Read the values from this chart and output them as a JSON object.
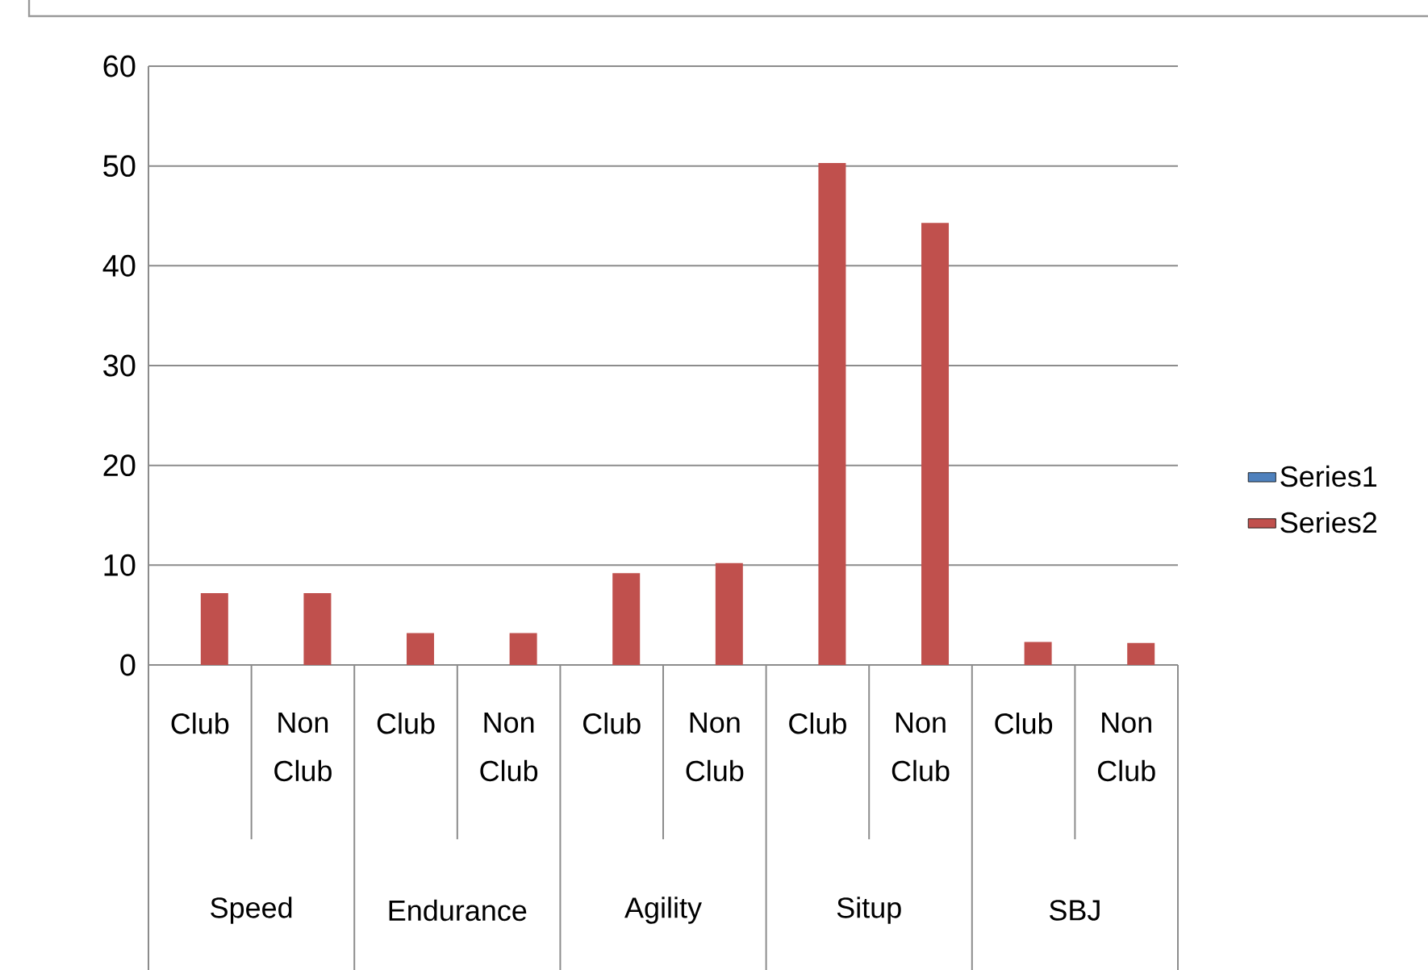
{
  "chart_data": {
    "type": "bar",
    "categories": [
      "Club",
      "Non Club",
      "Club",
      "Non Club",
      "Club",
      "Non Club",
      "Club",
      "Non Club",
      "Club",
      "Non Club"
    ],
    "series": [
      {
        "name": "Series1",
        "color": "#4f81bd",
        "values": [
          null,
          null,
          null,
          null,
          null,
          null,
          null,
          null,
          null,
          null
        ]
      },
      {
        "name": "Series2",
        "color": "#c0504d",
        "values": [
          7.2,
          7.2,
          3.2,
          3.2,
          9.2,
          10.2,
          50.3,
          44.3,
          2.3,
          2.2
        ]
      }
    ],
    "annotations": [
      "Speed",
      "Endurance",
      "Agility",
      "Situp",
      "SBJ"
    ],
    "ylim": [
      0,
      60
    ],
    "yticks": [
      0,
      10,
      20,
      30,
      40,
      50,
      60
    ],
    "grid": "y",
    "legend": "right"
  }
}
